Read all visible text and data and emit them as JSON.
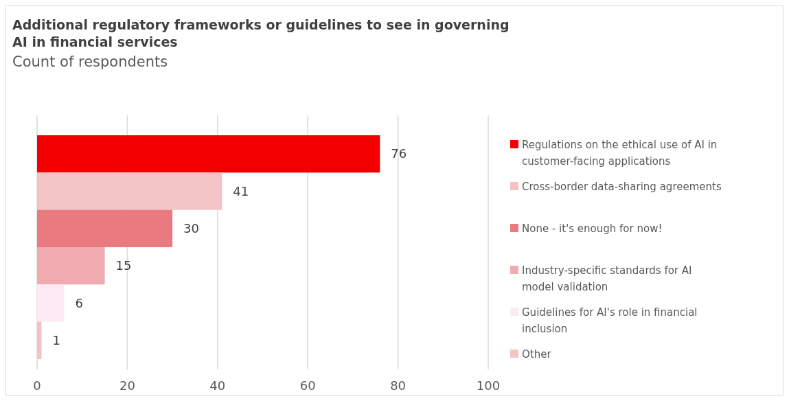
{
  "chart_data": {
    "type": "bar",
    "orientation": "horizontal",
    "title": "Additional regulatory frameworks or guidelines to see in governing AI in financial services",
    "subtitle": "Count of respondents",
    "categories": [
      null
    ],
    "series": [
      {
        "name": "Regulations on the ethical use of AI in customer-facing applications",
        "color": "#f20000",
        "values": [
          76
        ]
      },
      {
        "name": "Cross-border data-sharing agreements",
        "color": "#f2c4c6",
        "values": [
          41
        ]
      },
      {
        "name": "None - it's enough for now!",
        "color": "#e97a80",
        "values": [
          30
        ]
      },
      {
        "name": "Industry-specific standards for AI model validation",
        "color": "#f0abb1",
        "values": [
          15
        ]
      },
      {
        "name": "Guidelines for AI's role in financial inclusion",
        "color": "#fdeaf4",
        "values": [
          6
        ]
      },
      {
        "name": "Other",
        "color": "#f2c4c6",
        "values": [
          1
        ]
      }
    ],
    "xlim": [
      0,
      100
    ],
    "xticks": [
      0,
      20,
      40,
      60,
      80,
      100
    ],
    "grid": "x",
    "data_labels": true,
    "legend": "right"
  }
}
